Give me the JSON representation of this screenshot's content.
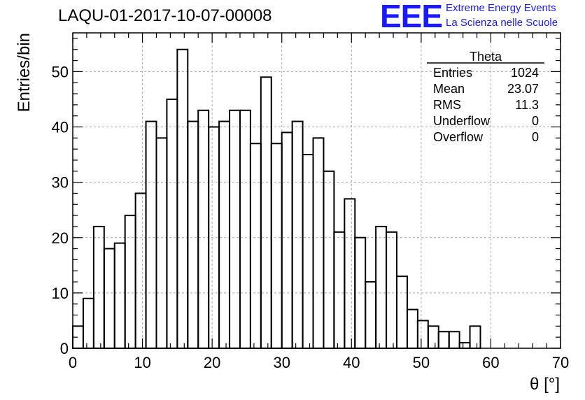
{
  "header": {
    "title": "LAQU-01-2017-10-07-00008",
    "logo_text": "EEE",
    "tagline_1": "Extreme Energy Events",
    "tagline_2": "La Scienza nelle Scuole",
    "logo_color": "#1a1aff"
  },
  "stats_box": {
    "name": "Theta",
    "rows": [
      {
        "label": "Entries",
        "value": "1024"
      },
      {
        "label": "Mean",
        "value": "23.07"
      },
      {
        "label": "RMS",
        "value": "11.3"
      },
      {
        "label": "Underflow",
        "value": "0"
      },
      {
        "label": "Overflow",
        "value": "0"
      }
    ]
  },
  "chart_data": {
    "type": "histogram",
    "xlabel": "θ [°]",
    "ylabel": "Entries/bin",
    "xlim": [
      0,
      70
    ],
    "ylim": [
      0,
      57
    ],
    "x_ticks": [
      0,
      10,
      20,
      30,
      40,
      50,
      60,
      70
    ],
    "y_ticks": [
      0,
      10,
      20,
      30,
      40,
      50
    ],
    "bin_width": 1.5,
    "bin_start": 0,
    "values": [
      4,
      9,
      22,
      18,
      19,
      24,
      28,
      41,
      38,
      45,
      54,
      41,
      43,
      40,
      41,
      43,
      43,
      37,
      49,
      37,
      39,
      41,
      35,
      38,
      32,
      21,
      27,
      20,
      12,
      22,
      21,
      13,
      7,
      5,
      4,
      3,
      3,
      1,
      4
    ],
    "grid": true,
    "line_color": "#000000",
    "grid_color": "#aaaaaa"
  }
}
